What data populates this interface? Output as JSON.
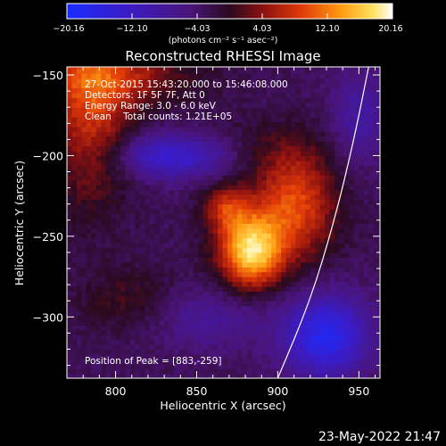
{
  "chart_data": {
    "type": "heatmap",
    "title": "Reconstructed RHESSI Image",
    "xlabel": "Heliocentric X (arcsec)",
    "ylabel": "Heliocentric Y (arcsec)",
    "xlim": [
      770,
      963
    ],
    "ylim": [
      -338,
      -145
    ],
    "xticks": [
      800,
      850,
      900,
      950
    ],
    "yticks": [
      -150,
      -200,
      -250,
      -300
    ],
    "colorbar": {
      "range": [
        -20.16,
        20.16
      ],
      "ticks": [
        "−20.16",
        "−12.10",
        "−4.03",
        "4.03",
        "12.10",
        "20.16"
      ],
      "unit_label": "(photons cm⁻² s⁻¹ asec⁻²)"
    },
    "info_lines": [
      "27-Oct-2015 15:43:20.000 to 15:46:08.000",
      "Detectors: 1F 5F 7F, Att 0",
      "Energy Range: 3.0 - 6.0 keV",
      "Clean    Total counts: 1.21E+05"
    ],
    "peak_text": "Position of Peak = [883,-259]",
    "peak": [
      883,
      -259
    ],
    "limb_curve": [
      [
        900,
        -338
      ],
      [
        920,
        -290
      ],
      [
        935,
        -240
      ],
      [
        947,
        -190
      ],
      [
        956,
        -145
      ]
    ],
    "sources": [
      {
        "x": 883,
        "y": -259,
        "sx": 14,
        "sy": 16,
        "amp": 20.0
      },
      {
        "x": 910,
        "y": -230,
        "sx": 18,
        "sy": 24,
        "amp": 12.5
      },
      {
        "x": 868,
        "y": -232,
        "sx": 10,
        "sy": 10,
        "amp": 9.0
      },
      {
        "x": 785,
        "y": -175,
        "sx": 18,
        "sy": 38,
        "amp": 10.0
      },
      {
        "x": 800,
        "y": -150,
        "sx": 35,
        "sy": 14,
        "amp": 7.5
      },
      {
        "x": 810,
        "y": -290,
        "sx": 22,
        "sy": 14,
        "amp": 4.5
      },
      {
        "x": 885,
        "y": -195,
        "sx": 28,
        "sy": 12,
        "amp": 2.5
      },
      {
        "x": 835,
        "y": -200,
        "sx": 26,
        "sy": 10,
        "amp": -11.0
      },
      {
        "x": 930,
        "y": -312,
        "sx": 18,
        "sy": 18,
        "amp": -14.5
      },
      {
        "x": 950,
        "y": -175,
        "sx": 12,
        "sy": 20,
        "amp": -6.0
      },
      {
        "x": 855,
        "y": -300,
        "sx": 28,
        "sy": 14,
        "amp": -5.0
      }
    ],
    "background": -3.0
  },
  "footer": {
    "date": "23-May-2022 21:47"
  },
  "colors": {
    "background": "#000000",
    "foreground": "#ffffff"
  }
}
